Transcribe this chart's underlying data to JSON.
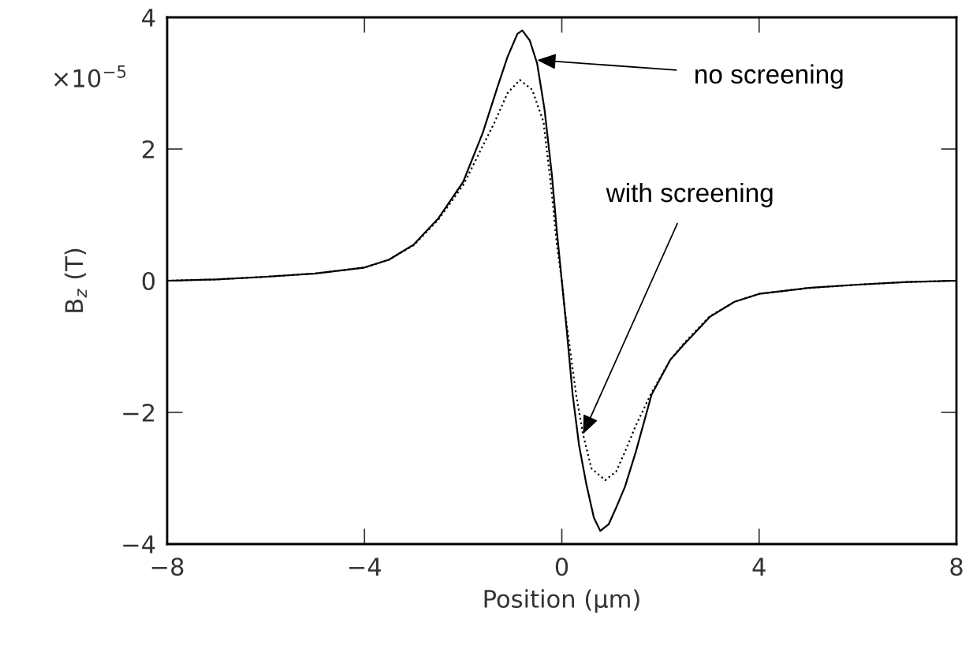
{
  "chart_data": {
    "type": "line",
    "xlabel": "Position (μm)",
    "ylabel": "B$_{z}$ (T)",
    "xlim": [
      -8,
      8
    ],
    "ylim": [
      -4,
      4
    ],
    "xticks": [
      {
        "value": -8,
        "label": "−8"
      },
      {
        "value": -4,
        "label": "−4"
      },
      0,
      4,
      8
    ],
    "yticks": [
      {
        "value": -4,
        "label": "−4"
      },
      {
        "value": -2,
        "label": "−2"
      },
      0,
      2,
      4
    ],
    "grid": false,
    "legend": false,
    "marker": "none",
    "annotations": [
      "×10$^{−5}$",
      {
        "text": "no screening",
        "x": -0.5,
        "y": 3.35
      },
      {
        "text": "with screening",
        "x": 0.43,
        "y": -2.33
      }
    ],
    "series": [
      {
        "color": "#000000",
        "line_style": "solid",
        "x": [
          -8,
          -7,
          -6,
          -5,
          -4,
          -3.5,
          -3,
          -2.5,
          -2,
          -1.6,
          -1.3,
          -1.1,
          -0.9,
          -0.8,
          -0.65,
          -0.5,
          -0.35,
          -0.2,
          -0.1,
          0,
          0.1,
          0.22,
          0.35,
          0.5,
          0.65,
          0.78,
          0.95,
          1.1,
          1.28,
          1.5,
          1.82,
          2.2,
          2.5,
          3,
          3.5,
          4,
          5,
          6,
          7,
          8
        ],
        "values": [
          0,
          0.02,
          0.06,
          0.11,
          0.2,
          0.32,
          0.55,
          0.95,
          1.5,
          2.25,
          2.95,
          3.4,
          3.75,
          3.8,
          3.65,
          3.3,
          2.6,
          1.6,
          0.75,
          0,
          -0.75,
          -1.73,
          -2.5,
          -3.1,
          -3.6,
          -3.8,
          -3.7,
          -3.45,
          -3.13,
          -2.6,
          -1.73,
          -1.2,
          -0.95,
          -0.55,
          -0.32,
          -0.2,
          -0.11,
          -0.06,
          -0.02,
          0
        ]
      },
      {
        "color": "#000000",
        "line_style": "dotted",
        "x": [
          -8,
          -7,
          -6,
          -5,
          -4,
          -3.5,
          -3,
          -2.5,
          -2,
          -1.6,
          -1.36,
          -1.1,
          -0.85,
          -0.6,
          -0.37,
          -0.21,
          -0.1,
          0,
          0.07,
          0.29,
          0.43,
          0.6,
          0.88,
          1.1,
          1.28,
          1.5,
          1.8,
          2.2,
          2.5,
          3,
          3.5,
          4,
          5,
          6,
          7,
          8
        ],
        "values": [
          0,
          0.02,
          0.06,
          0.11,
          0.2,
          0.32,
          0.54,
          0.93,
          1.45,
          2.05,
          2.41,
          2.85,
          3.05,
          2.9,
          2.41,
          1.38,
          0.55,
          0,
          -0.5,
          -1.73,
          -2.33,
          -2.85,
          -3.03,
          -2.9,
          -2.6,
          -2.2,
          -1.73,
          -1.2,
          -0.93,
          -0.54,
          -0.32,
          -0.2,
          -0.11,
          -0.06,
          -0.02,
          0
        ]
      }
    ]
  }
}
